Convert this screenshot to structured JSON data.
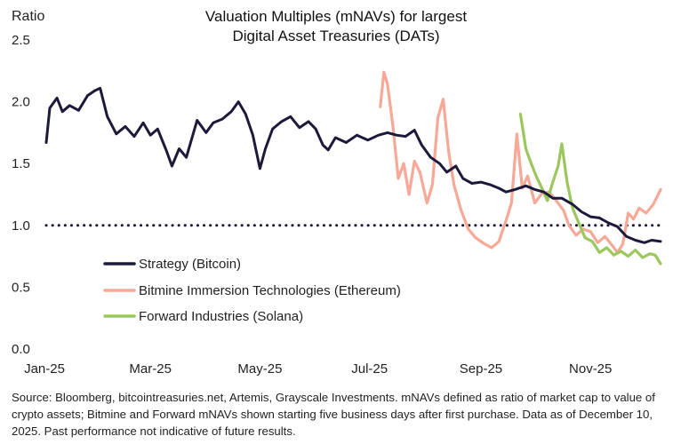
{
  "chart_data": {
    "type": "line",
    "title": [
      "Valuation Multiples (mNAVs) for largest",
      "Digital Asset Treasuries (DATs)"
    ],
    "ylabel": "Ratio",
    "xlabel": "",
    "ylim": [
      0,
      2.5
    ],
    "yticks": [
      "0.0",
      "0.5",
      "1.0",
      "1.5",
      "2.0",
      "2.5"
    ],
    "xticks": [
      {
        "label": "Jan-25",
        "date": "2025-01-01"
      },
      {
        "label": "Mar-25",
        "date": "2025-03-01"
      },
      {
        "label": "May-25",
        "date": "2025-05-01"
      },
      {
        "label": "Jul-25",
        "date": "2025-07-01"
      },
      {
        "label": "Sep-25",
        "date": "2025-09-01"
      },
      {
        "label": "Nov-25",
        "date": "2025-11-01"
      }
    ],
    "xrange": [
      "2025-01-02",
      "2025-12-10"
    ],
    "grid": false,
    "legend_position": "center-left",
    "reference_line": {
      "y": 1.0,
      "style": "dotted",
      "color": "#1c1a3a"
    },
    "series": [
      {
        "name": "Strategy (Bitcoin)",
        "color": "#1c1a3a",
        "points": [
          [
            "2025-01-02",
            1.67
          ],
          [
            "2025-01-04",
            1.95
          ],
          [
            "2025-01-08",
            2.03
          ],
          [
            "2025-01-11",
            1.92
          ],
          [
            "2025-01-15",
            1.97
          ],
          [
            "2025-01-20",
            1.93
          ],
          [
            "2025-01-25",
            2.05
          ],
          [
            "2025-01-29",
            2.09
          ],
          [
            "2025-02-01",
            2.11
          ],
          [
            "2025-02-05",
            1.88
          ],
          [
            "2025-02-10",
            1.74
          ],
          [
            "2025-02-15",
            1.8
          ],
          [
            "2025-02-20",
            1.72
          ],
          [
            "2025-02-25",
            1.83
          ],
          [
            "2025-03-01",
            1.73
          ],
          [
            "2025-03-05",
            1.78
          ],
          [
            "2025-03-10",
            1.6
          ],
          [
            "2025-03-13",
            1.48
          ],
          [
            "2025-03-17",
            1.62
          ],
          [
            "2025-03-21",
            1.55
          ],
          [
            "2025-03-27",
            1.85
          ],
          [
            "2025-04-01",
            1.75
          ],
          [
            "2025-04-05",
            1.83
          ],
          [
            "2025-04-10",
            1.86
          ],
          [
            "2025-04-15",
            1.92
          ],
          [
            "2025-04-19",
            2.0
          ],
          [
            "2025-04-23",
            1.9
          ],
          [
            "2025-04-27",
            1.73
          ],
          [
            "2025-05-01",
            1.46
          ],
          [
            "2025-05-04",
            1.62
          ],
          [
            "2025-05-08",
            1.78
          ],
          [
            "2025-05-13",
            1.84
          ],
          [
            "2025-05-18",
            1.88
          ],
          [
            "2025-05-23",
            1.79
          ],
          [
            "2025-05-28",
            1.84
          ],
          [
            "2025-06-01",
            1.78
          ],
          [
            "2025-06-05",
            1.65
          ],
          [
            "2025-06-08",
            1.61
          ],
          [
            "2025-06-12",
            1.71
          ],
          [
            "2025-06-18",
            1.67
          ],
          [
            "2025-06-24",
            1.73
          ],
          [
            "2025-06-30",
            1.69
          ],
          [
            "2025-07-06",
            1.73
          ],
          [
            "2025-07-11",
            1.75
          ],
          [
            "2025-07-16",
            1.73
          ],
          [
            "2025-07-21",
            1.72
          ],
          [
            "2025-07-26",
            1.77
          ],
          [
            "2025-07-30",
            1.65
          ],
          [
            "2025-08-04",
            1.55
          ],
          [
            "2025-08-09",
            1.5
          ],
          [
            "2025-08-13",
            1.43
          ],
          [
            "2025-08-18",
            1.48
          ],
          [
            "2025-08-22",
            1.38
          ],
          [
            "2025-08-27",
            1.34
          ],
          [
            "2025-09-01",
            1.35
          ],
          [
            "2025-09-06",
            1.33
          ],
          [
            "2025-09-11",
            1.3
          ],
          [
            "2025-09-15",
            1.27
          ],
          [
            "2025-09-20",
            1.29
          ],
          [
            "2025-09-26",
            1.32
          ],
          [
            "2025-10-01",
            1.29
          ],
          [
            "2025-10-06",
            1.27
          ],
          [
            "2025-10-11",
            1.22
          ],
          [
            "2025-10-16",
            1.22
          ],
          [
            "2025-10-22",
            1.17
          ],
          [
            "2025-10-27",
            1.11
          ],
          [
            "2025-11-01",
            1.07
          ],
          [
            "2025-11-06",
            1.06
          ],
          [
            "2025-11-11",
            1.02
          ],
          [
            "2025-11-16",
            0.99
          ],
          [
            "2025-11-21",
            0.91
          ],
          [
            "2025-11-26",
            0.88
          ],
          [
            "2025-12-01",
            0.86
          ],
          [
            "2025-12-05",
            0.88
          ],
          [
            "2025-12-10",
            0.87
          ]
        ]
      },
      {
        "name": "Bitmine Immersion Technologies (Ethereum)",
        "color": "#f7a896",
        "points": [
          [
            "2025-07-07",
            1.96
          ],
          [
            "2025-07-09",
            2.24
          ],
          [
            "2025-07-11",
            2.14
          ],
          [
            "2025-07-14",
            1.8
          ],
          [
            "2025-07-17",
            1.38
          ],
          [
            "2025-07-20",
            1.5
          ],
          [
            "2025-07-23",
            1.25
          ],
          [
            "2025-07-26",
            1.52
          ],
          [
            "2025-07-29",
            1.43
          ],
          [
            "2025-08-02",
            1.18
          ],
          [
            "2025-08-05",
            1.33
          ],
          [
            "2025-08-08",
            1.87
          ],
          [
            "2025-08-11",
            2.02
          ],
          [
            "2025-08-14",
            1.6
          ],
          [
            "2025-08-17",
            1.33
          ],
          [
            "2025-08-21",
            1.12
          ],
          [
            "2025-08-25",
            0.97
          ],
          [
            "2025-08-29",
            0.9
          ],
          [
            "2025-09-03",
            0.85
          ],
          [
            "2025-09-07",
            0.82
          ],
          [
            "2025-09-11",
            0.87
          ],
          [
            "2025-09-15",
            1.04
          ],
          [
            "2025-09-18",
            1.18
          ],
          [
            "2025-09-21",
            1.74
          ],
          [
            "2025-09-24",
            1.3
          ],
          [
            "2025-09-27",
            1.4
          ],
          [
            "2025-10-01",
            1.18
          ],
          [
            "2025-10-05",
            1.26
          ],
          [
            "2025-10-09",
            1.27
          ],
          [
            "2025-10-13",
            1.2
          ],
          [
            "2025-10-17",
            1.12
          ],
          [
            "2025-10-20",
            1.0
          ],
          [
            "2025-10-24",
            0.92
          ],
          [
            "2025-10-28",
            0.97
          ],
          [
            "2025-11-01",
            0.95
          ],
          [
            "2025-11-05",
            0.86
          ],
          [
            "2025-11-09",
            0.91
          ],
          [
            "2025-11-13",
            0.84
          ],
          [
            "2025-11-16",
            0.78
          ],
          [
            "2025-11-19",
            0.85
          ],
          [
            "2025-11-22",
            1.1
          ],
          [
            "2025-11-25",
            1.05
          ],
          [
            "2025-11-28",
            1.14
          ],
          [
            "2025-12-02",
            1.1
          ],
          [
            "2025-12-06",
            1.17
          ],
          [
            "2025-12-10",
            1.29
          ]
        ]
      },
      {
        "name": "Forward Industries (Solana)",
        "color": "#9bc75c",
        "points": [
          [
            "2025-09-23",
            1.9
          ],
          [
            "2025-09-26",
            1.62
          ],
          [
            "2025-09-29",
            1.5
          ],
          [
            "2025-10-02",
            1.39
          ],
          [
            "2025-10-05",
            1.3
          ],
          [
            "2025-10-08",
            1.2
          ],
          [
            "2025-10-11",
            1.35
          ],
          [
            "2025-10-14",
            1.48
          ],
          [
            "2025-10-16",
            1.66
          ],
          [
            "2025-10-19",
            1.35
          ],
          [
            "2025-10-22",
            1.14
          ],
          [
            "2025-10-26",
            1.0
          ],
          [
            "2025-10-29",
            0.9
          ],
          [
            "2025-11-02",
            0.87
          ],
          [
            "2025-11-06",
            0.78
          ],
          [
            "2025-11-10",
            0.82
          ],
          [
            "2025-11-14",
            0.76
          ],
          [
            "2025-11-18",
            0.79
          ],
          [
            "2025-11-22",
            0.75
          ],
          [
            "2025-11-26",
            0.8
          ],
          [
            "2025-11-30",
            0.74
          ],
          [
            "2025-12-04",
            0.77
          ],
          [
            "2025-12-07",
            0.76
          ],
          [
            "2025-12-10",
            0.69
          ]
        ]
      }
    ]
  },
  "source_note": "Source: Bloomberg, bitcointreasuries.net, Artemis, Grayscale Investments. mNAVs defined as ratio of market cap to value of crypto assets; Bitmine and Forward mNAVs shown starting five business days after first purchase. Data as of December 10, 2025. Past performance not indicative of future results."
}
